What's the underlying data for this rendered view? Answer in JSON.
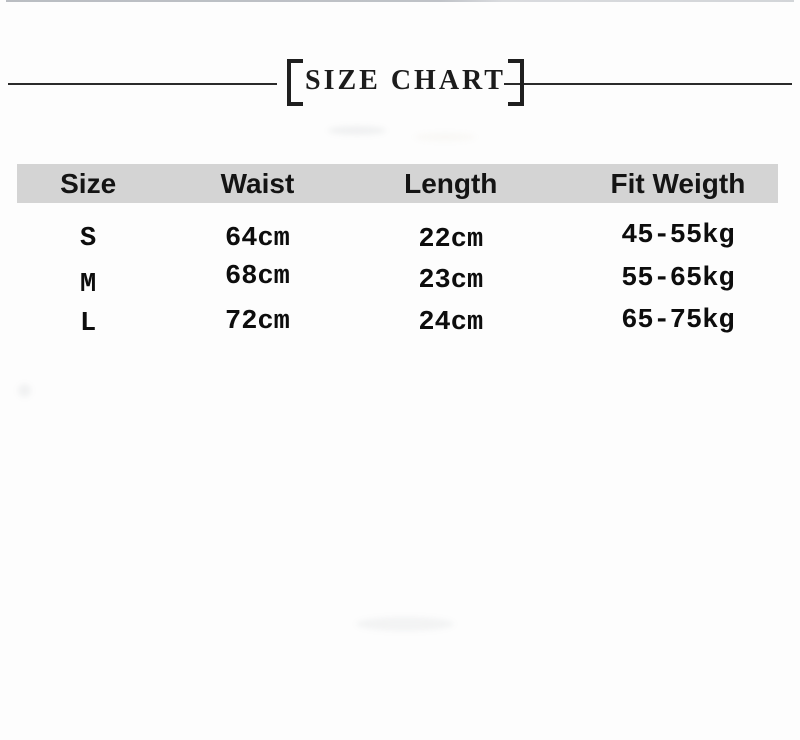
{
  "title_banner": {
    "text": "SIZE CHART"
  },
  "chart_data": {
    "type": "table",
    "title": "SIZE CHART",
    "columns": [
      "Size",
      "Waist",
      "Length",
      "Fit Weigth"
    ],
    "rows": [
      [
        "S",
        "64cm",
        "22cm",
        "45-55kg"
      ],
      [
        "M",
        "68cm",
        "23cm",
        "55-65kg"
      ],
      [
        "L",
        "72cm",
        "24cm",
        "65-75kg"
      ]
    ]
  },
  "styles": {
    "header_background": "#d4d4d4",
    "divider_color": "#2a2a2a",
    "title_color": "#1c1c1c",
    "data_text_color": "#0d0d0d",
    "page_background": "#fdfdfd"
  }
}
